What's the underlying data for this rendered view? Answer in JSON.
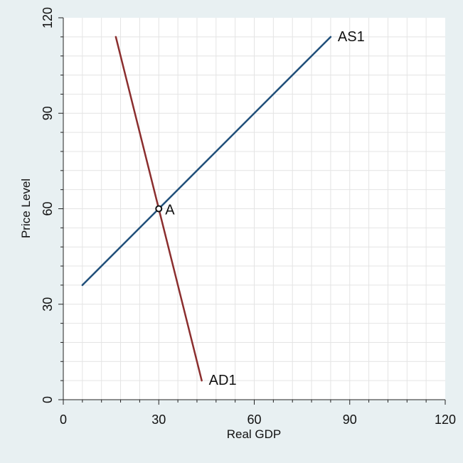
{
  "chart_data": {
    "type": "line",
    "title": "",
    "xlabel": "Real GDP",
    "ylabel": "Price Level",
    "xlim": [
      0,
      120
    ],
    "ylim": [
      0,
      120
    ],
    "xticks": [
      0,
      30,
      60,
      90,
      120
    ],
    "yticks": [
      0,
      30,
      60,
      90,
      120
    ],
    "minor_grid_step": 6,
    "grid": true,
    "series": [
      {
        "name": "AS1",
        "x": [
          6,
          84
        ],
        "y": [
          36,
          114
        ],
        "color": "#1f4e79"
      },
      {
        "name": "AD1",
        "x": [
          16.5,
          43.5
        ],
        "y": [
          114,
          6
        ],
        "color": "#8b2e2e"
      }
    ],
    "points": [
      {
        "label": "A",
        "x": 30,
        "y": 60
      }
    ]
  }
}
